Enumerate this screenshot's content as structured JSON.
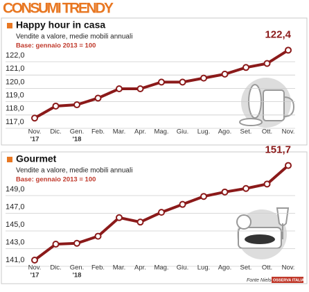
{
  "header": {
    "title": "CONSUMI TRENDY"
  },
  "chart_data": [
    {
      "type": "line",
      "title": "Happy hour in casa",
      "subtitle": "Vendite a valore, medie mobili annuali",
      "note": "Base: gennaio 2013 = 100",
      "categories": [
        "Nov.",
        "Dic.",
        "Gen.",
        "Feb.",
        "Mar.",
        "Apr.",
        "Mag.",
        "Giu.",
        "Lug.",
        "Ago.",
        "Set.",
        "Ott.",
        "Nov."
      ],
      "x_sublabels": [
        "'17",
        null,
        "'18",
        null,
        null,
        null,
        null,
        null,
        null,
        null,
        null,
        null,
        null
      ],
      "series": [
        {
          "color": "#8b1a1a",
          "values": [
            117.3,
            118.2,
            118.3,
            118.8,
            119.5,
            119.5,
            120.0,
            120.0,
            120.3,
            120.6,
            121.1,
            121.4,
            122.4
          ],
          "value_labels": [
            null,
            null,
            null,
            null,
            null,
            null,
            null,
            null,
            null,
            null,
            null,
            null,
            "122,4"
          ]
        }
      ],
      "ylim": [
        116.5,
        122.7
      ],
      "yticks": [
        {
          "value": 117,
          "label": "117,0"
        },
        {
          "value": 118,
          "label": "118,0"
        },
        {
          "value": 119,
          "label": "119,0"
        },
        {
          "value": 120,
          "label": "120,0"
        },
        {
          "value": 121,
          "label": "121,0"
        },
        {
          "value": 122,
          "label": "122,0"
        }
      ],
      "grid": true
    },
    {
      "type": "line",
      "title": "Gourmet",
      "subtitle": "Vendite a valore, medie mobili annuali",
      "note": "Base: gennaio 2013 = 100",
      "categories": [
        "Nov.",
        "Dic.",
        "Gen.",
        "Feb.",
        "Mar.",
        "Apr.",
        "Mag.",
        "Giu.",
        "Lug.",
        "Ago.",
        "Set.",
        "Ott.",
        "Nov."
      ],
      "x_sublabels": [
        "'17",
        null,
        "'18",
        null,
        null,
        null,
        null,
        null,
        null,
        null,
        null,
        null,
        null
      ],
      "series": [
        {
          "color": "#8b1a1a",
          "values": [
            141.0,
            142.8,
            142.9,
            143.7,
            145.8,
            145.3,
            146.4,
            147.3,
            148.2,
            148.7,
            149.1,
            149.6,
            151.7
          ],
          "value_labels": [
            null,
            null,
            null,
            null,
            null,
            null,
            null,
            null,
            null,
            null,
            null,
            null,
            "151,7"
          ]
        }
      ],
      "ylim": [
        140.3,
        152.2
      ],
      "yticks": [
        {
          "value": 141,
          "label": "141,0"
        },
        {
          "value": 143,
          "label": "143,0"
        },
        {
          "value": 145,
          "label": "145,0"
        },
        {
          "value": 147,
          "label": "147,0"
        },
        {
          "value": 149,
          "label": "149,0"
        }
      ],
      "grid": true
    }
  ],
  "footer": {
    "source": "Fonte Nielsen",
    "logo": "OSSERVA ITALIA"
  }
}
